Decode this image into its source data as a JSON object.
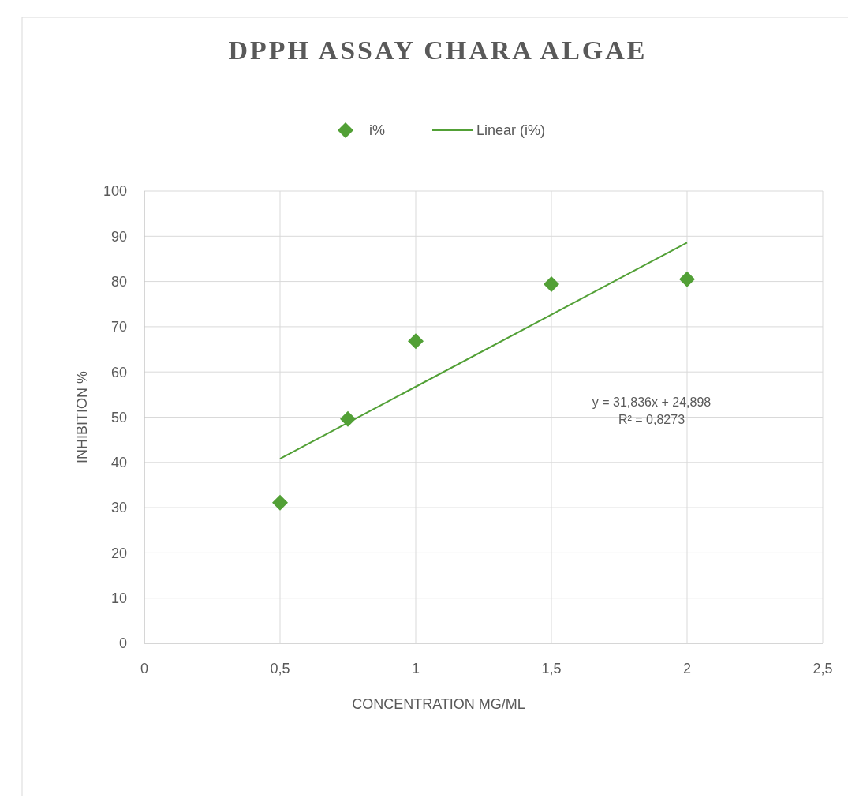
{
  "chart_data": {
    "type": "scatter",
    "title": "DPPH ASSAY CHARA ALGAE",
    "xlabel": "CONCENTRATION MG/ML",
    "ylabel": "INHIBITION %",
    "xlim": [
      0,
      2.5
    ],
    "xticks": [
      0,
      {
        "value": 0.5,
        "label": "0,5"
      },
      1,
      {
        "value": 1.5,
        "label": "1,5"
      },
      2,
      {
        "value": 2.5,
        "label": "2,5"
      }
    ],
    "ylim": [
      0,
      100
    ],
    "yticks": [
      0,
      10,
      20,
      30,
      40,
      50,
      60,
      70,
      80,
      90,
      100
    ],
    "grid": true,
    "legend": "top",
    "series": [
      {
        "name": "i%",
        "marker": "diamond",
        "color": "#52a036",
        "x": [
          0.5,
          0.75,
          1,
          1.5,
          2
        ],
        "values": [
          31.1,
          49.6,
          66.8,
          79.4,
          80.5
        ]
      },
      {
        "name": "Linear (i%)",
        "type": "line",
        "color": "#52a036",
        "x": [
          0.5,
          2
        ],
        "values": [
          40.8,
          88.6
        ],
        "line_style": "solid",
        "marker": "none"
      }
    ],
    "annotations": [
      "y = 31,836x + 24,898",
      "R² = 0,8273"
    ]
  }
}
